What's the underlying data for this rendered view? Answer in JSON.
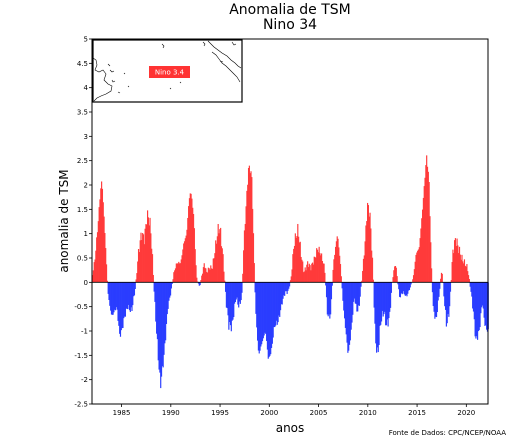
{
  "figure": {
    "title": "Anomalia de TSM",
    "subtitle": "Nino 34",
    "credit": "Fonte de Dados: CPC/NCEP/NOAA"
  },
  "inset": {
    "label": "Nino 3.4",
    "label_color": "#ff3333"
  },
  "chart_data": {
    "type": "bar",
    "title": "Anomalia de TSM",
    "subtitle": "Nino 34",
    "xlabel": "anos",
    "ylabel": "anomalia de TSM",
    "xlim": [
      1982.0,
      2022.2
    ],
    "ylim": [
      -2.5,
      5
    ],
    "xticks": [
      1985,
      1990,
      1995,
      2000,
      2005,
      2010,
      2015,
      2020
    ],
    "yticks": [
      -2.5,
      -2,
      -1.5,
      -1,
      -0.5,
      0,
      0.5,
      1,
      1.5,
      2,
      2.5,
      3,
      3.5,
      4,
      4.5,
      5
    ],
    "grid": false,
    "colors": {
      "positive": "#ff3a3a",
      "negative": "#2a3dff",
      "axis": "#000000"
    },
    "resolution": "monthly",
    "key_points": {
      "x": [
        1982.0,
        1982.3,
        1982.6,
        1982.85,
        1983.0,
        1983.3,
        1983.6,
        1983.8,
        1984.0,
        1984.5,
        1984.8,
        1985.0,
        1985.3,
        1985.6,
        1986.0,
        1986.4,
        1986.7,
        1987.0,
        1987.3,
        1987.6,
        1987.9,
        1988.1,
        1988.35,
        1988.6,
        1988.8,
        1988.95,
        1989.3,
        1989.7,
        1990.0,
        1990.3,
        1990.6,
        1991.0,
        1991.3,
        1991.6,
        1991.8,
        1992.0,
        1992.3,
        1992.6,
        1992.9,
        1993.2,
        1993.4,
        1993.6,
        1993.9,
        1994.2,
        1994.5,
        1994.8,
        1995.0,
        1995.3,
        1995.6,
        1995.9,
        1996.2,
        1996.6,
        1996.9,
        1997.2,
        1997.4,
        1997.7,
        1997.9,
        1998.2,
        1998.4,
        1998.6,
        1998.9,
        1999.3,
        1999.6,
        1999.9,
        2000.2,
        2000.5,
        2000.9,
        2001.3,
        2001.6,
        2001.9,
        2002.2,
        2002.5,
        2002.9,
        2003.2,
        2003.5,
        2003.9,
        2004.2,
        2004.6,
        2004.9,
        2005.2,
        2005.6,
        2005.9,
        2006.2,
        2006.5,
        2006.9,
        2007.2,
        2007.5,
        2007.8,
        2008.0,
        2008.3,
        2008.6,
        2008.9,
        2009.1,
        2009.4,
        2009.7,
        2009.95,
        2010.2,
        2010.5,
        2010.75,
        2011.0,
        2011.3,
        2011.6,
        2011.9,
        2012.2,
        2012.5,
        2012.8,
        2013.2,
        2013.6,
        2013.9,
        2014.3,
        2014.6,
        2014.9,
        2015.2,
        2015.5,
        2015.8,
        2015.95,
        2016.2,
        2016.4,
        2016.6,
        2016.9,
        2017.2,
        2017.5,
        2017.8,
        2018.0,
        2018.3,
        2018.6,
        2018.9,
        2019.2,
        2019.5,
        2019.8,
        2020.1,
        2020.4,
        2020.7,
        2020.95,
        2021.3,
        2021.6,
        2021.9,
        2022.15
      ],
      "y": [
        0.1,
        0.5,
        1.2,
        1.9,
        2.1,
        1.0,
        -0.2,
        -0.5,
        -0.7,
        -0.5,
        -1.1,
        -1.0,
        -0.7,
        -0.5,
        -0.6,
        -0.1,
        0.6,
        1.0,
        0.9,
        1.4,
        1.2,
        0.6,
        -0.4,
        -1.2,
        -1.8,
        -2.1,
        -1.5,
        -0.5,
        -0.2,
        0.2,
        0.4,
        0.4,
        0.8,
        1.0,
        1.6,
        1.9,
        1.4,
        0.1,
        -0.1,
        0.2,
        0.4,
        0.2,
        0.3,
        0.3,
        0.7,
        1.1,
        1.1,
        0.5,
        -0.4,
        -0.9,
        -0.9,
        -0.3,
        -0.5,
        -0.3,
        0.8,
        1.8,
        2.4,
        2.2,
        0.8,
        -0.6,
        -1.5,
        -1.2,
        -1.0,
        -1.6,
        -1.4,
        -0.9,
        -0.8,
        -0.4,
        -0.2,
        -0.2,
        0.1,
        0.8,
        1.1,
        0.6,
        0.2,
        0.4,
        0.3,
        0.5,
        0.7,
        0.6,
        0.3,
        -0.7,
        -0.7,
        0.4,
        1.0,
        0.4,
        -0.5,
        -1.1,
        -1.5,
        -1.0,
        -0.3,
        -0.6,
        -0.5,
        0.1,
        0.8,
        1.6,
        1.4,
        0.3,
        -1.2,
        -1.5,
        -0.8,
        -0.6,
        -0.9,
        -0.7,
        0.1,
        0.4,
        -0.3,
        -0.2,
        -0.3,
        -0.1,
        0.1,
        0.6,
        0.7,
        1.4,
        2.2,
        2.6,
        2.1,
        0.6,
        -0.5,
        -0.8,
        -0.3,
        0.3,
        -0.5,
        -0.9,
        -0.5,
        0.6,
        0.9,
        0.7,
        0.5,
        0.4,
        0.3,
        -0.1,
        -0.6,
        -1.2,
        -1.0,
        -0.4,
        -0.9,
        -1.0
      ]
    }
  }
}
